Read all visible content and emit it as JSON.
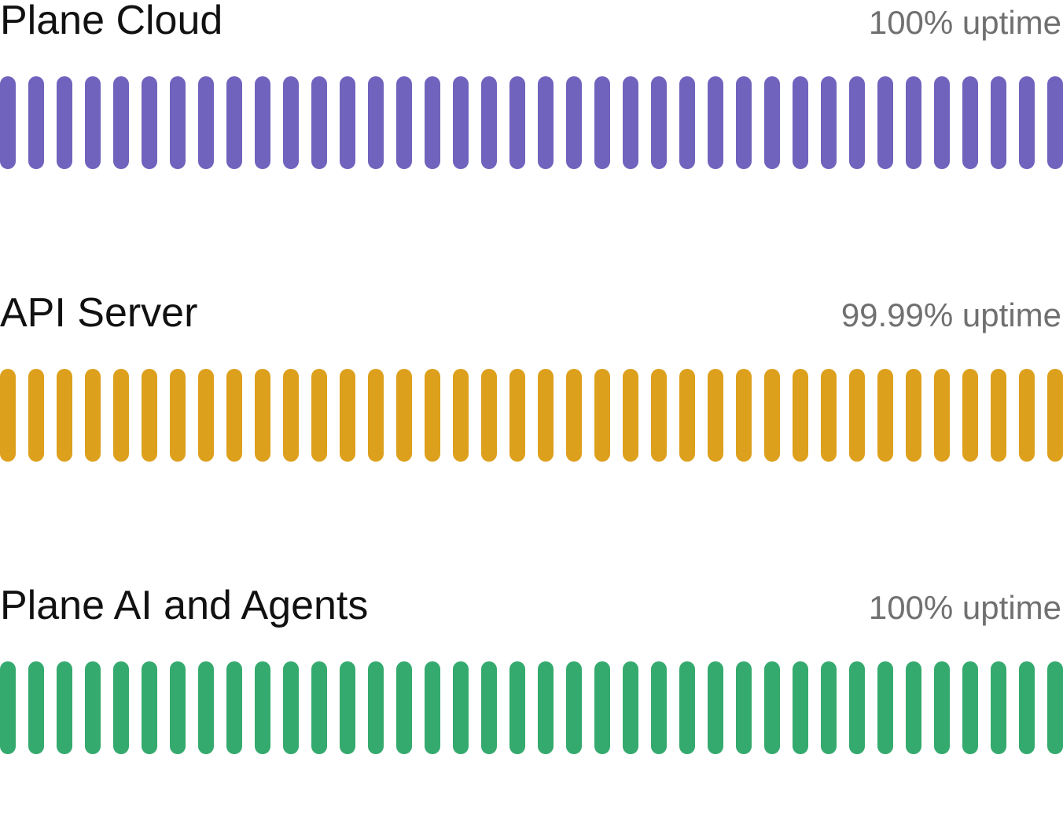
{
  "services": [
    {
      "name": "Plane Cloud",
      "uptime": "100% uptime",
      "color": "#7063bd"
    },
    {
      "name": "API Server",
      "uptime": "99.99% uptime",
      "color": "#dda01c"
    },
    {
      "name": "Plane AI and Agents",
      "uptime": "100% uptime",
      "color": "#35aa6e"
    }
  ]
}
